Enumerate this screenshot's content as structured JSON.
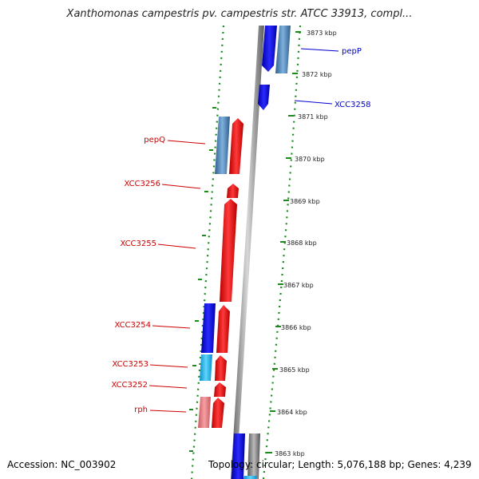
{
  "title": "Xanthomonas campestris pv. campestris str. ATCC 33913, compl...",
  "footer": {
    "accession": "Accession: NC_003902",
    "topology": "Topology: circular; Length: 5,076,188 bp; Genes: 4,239"
  },
  "kbp_labels": [
    "3873 kbp",
    "3872 kbp",
    "3871 kbp",
    "3870 kbp",
    "3869 kbp",
    "3868 kbp",
    "3867 kbp",
    "3866 kbp",
    "3865 kbp",
    "3864 kbp",
    "3863 kbp"
  ],
  "gene_labels": {
    "forward": [
      "pepP",
      "XCC3258"
    ],
    "reverse": [
      "pepQ",
      "XCC3256",
      "XCC3255",
      "XCC3254",
      "XCC3253",
      "XCC3252",
      "rph"
    ]
  },
  "colors": {
    "forward_label": "#0000cc",
    "reverse_label": "#cc0000",
    "tick": "#1a8a1a",
    "backbone": "#8a8a8a",
    "blue": "#0000ee",
    "steel_blue": "#4a7fb0",
    "light_blue": "#1ab0ee",
    "red": "#ee0000",
    "pink": "#e87a80",
    "gray_feature": "#888888"
  }
}
